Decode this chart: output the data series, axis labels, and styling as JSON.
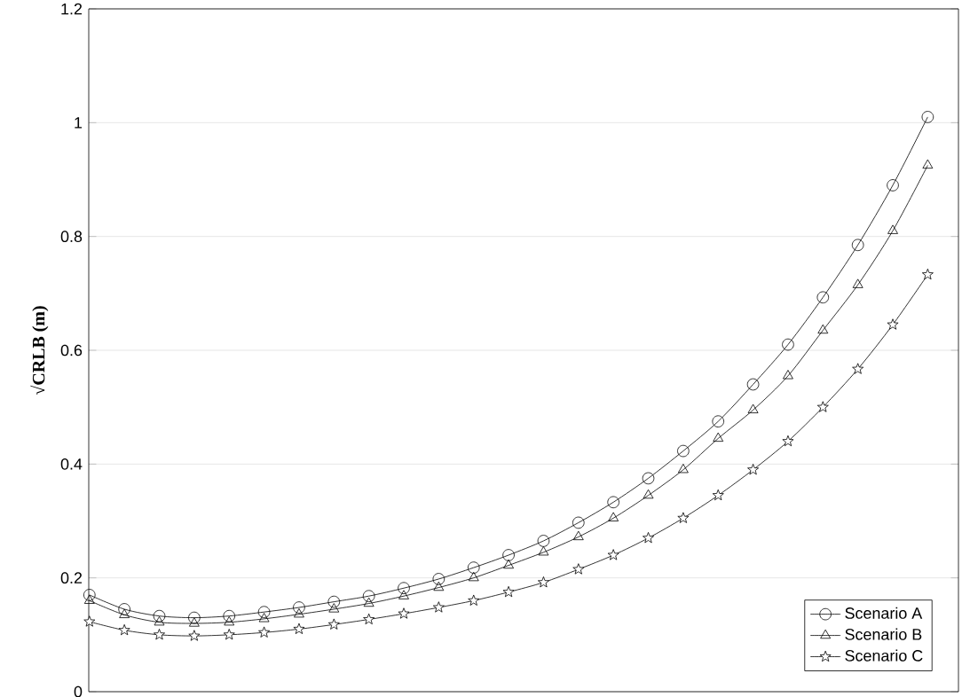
{
  "chart_data": {
    "type": "line",
    "ylabel": "√CRLB (m)",
    "categories": [
      null,
      null,
      null,
      null,
      null,
      null,
      null,
      null,
      null,
      null,
      null,
      null,
      null,
      null,
      null,
      null,
      null,
      null,
      null,
      null,
      null,
      null,
      null,
      null,
      null
    ],
    "series": [
      {
        "name": "Scenario A",
        "color": "#000000",
        "marker": "circle",
        "values": [
          0.17,
          0.145,
          0.133,
          0.13,
          0.133,
          0.14,
          0.148,
          0.158,
          0.168,
          0.182,
          0.198,
          0.218,
          0.24,
          0.265,
          0.297,
          0.333,
          0.375,
          0.423,
          0.475,
          0.54,
          0.61,
          0.693,
          0.785,
          0.89,
          1.01
        ]
      },
      {
        "name": "Scenario B",
        "color": "#000000",
        "marker": "triangle",
        "values": [
          0.16,
          0.135,
          0.122,
          0.12,
          0.122,
          0.128,
          0.136,
          0.145,
          0.155,
          0.168,
          0.183,
          0.2,
          0.222,
          0.245,
          0.272,
          0.305,
          0.345,
          0.39,
          0.445,
          0.495,
          0.555,
          0.635,
          0.715,
          0.81,
          0.925
        ]
      },
      {
        "name": "Scenario C",
        "color": "#000000",
        "marker": "star",
        "values": [
          0.123,
          0.108,
          0.1,
          0.098,
          0.1,
          0.104,
          0.11,
          0.118,
          0.127,
          0.137,
          0.148,
          0.16,
          0.175,
          0.192,
          0.215,
          0.24,
          0.27,
          0.305,
          0.345,
          0.39,
          0.44,
          0.5,
          0.567,
          0.645,
          0.733
        ]
      }
    ],
    "ylim": [
      0,
      1.2
    ],
    "yticks": [
      0,
      0.2,
      0.4,
      0.6,
      0.8,
      1,
      1.2
    ],
    "grid": "y",
    "legend": "bottom right",
    "tick_labels": "y",
    "line_style": "solid"
  }
}
